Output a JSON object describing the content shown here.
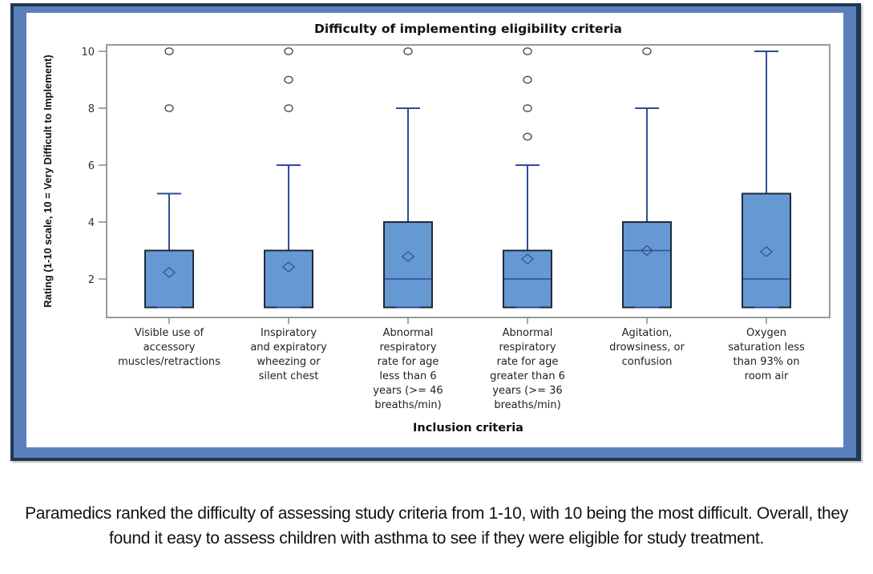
{
  "chart_data": {
    "type": "boxplot",
    "title": "Difficulty of implementing eligibility criteria",
    "xlabel": "Inclusion criteria",
    "ylabel": "Rating (1-10 scale, 10 = Very Difficult to Implement)",
    "ylim": [
      0.65,
      10.25
    ],
    "yticks": [
      2,
      4,
      6,
      8,
      10
    ],
    "grid": false,
    "box_color": "#6699d2",
    "line_color": "#2e4c9c",
    "categories": [
      [
        "Visible use of",
        "accessory",
        "muscles/retractions"
      ],
      [
        "Inspiratory",
        "and expiratory",
        "wheezing or",
        "silent chest"
      ],
      [
        "Abnormal",
        "respiratory",
        "rate for age",
        "less than 6",
        "years (>= 46",
        "breaths/min)"
      ],
      [
        "Abnormal",
        "respiratory",
        "rate for age",
        "greater than 6",
        "years (>= 36",
        "breaths/min)"
      ],
      [
        "Agitation,",
        "drowsiness, or",
        "confusion"
      ],
      [
        "Oxygen",
        "saturation less",
        "than 93% on",
        "room air"
      ]
    ],
    "boxes": [
      {
        "min": 1,
        "q1": 1,
        "median": 1,
        "q3": 3,
        "max": 5,
        "mean": 2.23,
        "outliers": [
          8,
          10
        ]
      },
      {
        "min": 1,
        "q1": 1,
        "median": 1,
        "q3": 3,
        "max": 6,
        "mean": 2.42,
        "outliers": [
          8,
          9,
          10
        ]
      },
      {
        "min": 1,
        "q1": 1,
        "median": 2,
        "q3": 4,
        "max": 8,
        "mean": 2.79,
        "outliers": [
          10
        ]
      },
      {
        "min": 1,
        "q1": 1,
        "median": 2,
        "q3": 3,
        "max": 6,
        "mean": 2.7,
        "outliers": [
          7,
          8,
          9,
          10
        ]
      },
      {
        "min": 1,
        "q1": 1,
        "median": 3,
        "q3": 4,
        "max": 8,
        "mean": 3.0,
        "outliers": [
          10
        ]
      },
      {
        "min": 1,
        "q1": 1,
        "median": 2,
        "q3": 5,
        "max": 10,
        "mean": 2.96,
        "outliers": []
      }
    ]
  },
  "caption": "Paramedics ranked the difficulty of assessing study criteria from 1-10, with 10 being the most difficult. Overall, they found it easy to assess children with asthma to see if they were eligible for study treatment."
}
